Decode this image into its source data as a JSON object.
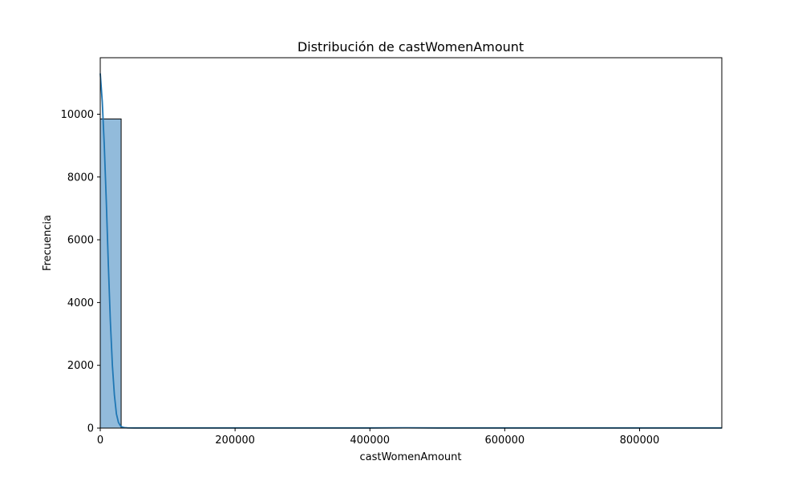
{
  "chart_data": {
    "type": "bar",
    "title": "Distribución de castWomenAmount",
    "xlabel": "castWomenAmount",
    "ylabel": "Frecuencia",
    "xlim": [
      0,
      922000
    ],
    "ylim": [
      0,
      11800
    ],
    "xticks": [
      0,
      200000,
      400000,
      600000,
      800000
    ],
    "xtick_labels": [
      "0",
      "200000",
      "400000",
      "600000",
      "800000"
    ],
    "yticks": [
      0,
      2000,
      4000,
      6000,
      8000,
      10000
    ],
    "ytick_labels": [
      "0",
      "2000",
      "4000",
      "6000",
      "8000",
      "10000"
    ],
    "grid": false,
    "bins": {
      "width": 31000,
      "edges_start": 0,
      "counts": [
        9850,
        5,
        2,
        1,
        1,
        1,
        0,
        1,
        1,
        1,
        0,
        1,
        1,
        1,
        1,
        1,
        1,
        0,
        1,
        1,
        1,
        1,
        1,
        0,
        0,
        1,
        1,
        1,
        1,
        1
      ]
    },
    "kde": {
      "x": [
        0,
        3000,
        6000,
        9000,
        12000,
        15000,
        18000,
        21000,
        24000,
        27000,
        30000,
        33000,
        36000,
        40000,
        50000,
        100000,
        200000,
        300000,
        400000,
        450000,
        500000,
        600000,
        700000,
        800000,
        922000
      ],
      "y": [
        11300,
        10400,
        9000,
        7200,
        5200,
        3400,
        2000,
        1050,
        450,
        180,
        70,
        30,
        15,
        8,
        5,
        5,
        5,
        5,
        5,
        10,
        5,
        5,
        5,
        5,
        5
      ]
    },
    "colors": {
      "bar_fill": "#92bbdb",
      "bar_edge": "#000000",
      "kde_line": "#1f77b4",
      "axes": "#000000"
    }
  }
}
